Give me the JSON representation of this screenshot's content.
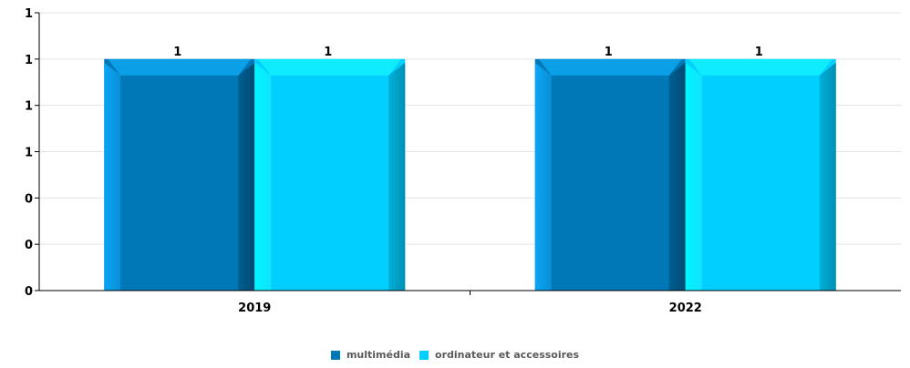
{
  "chart_data": {
    "type": "bar",
    "categories": [
      "2019",
      "2022"
    ],
    "series": [
      {
        "name": "multimédia",
        "values": [
          1,
          1
        ],
        "color": "#0077b6"
      },
      {
        "name": "ordinateur et accessoires",
        "values": [
          1,
          1
        ],
        "color": "#00cfff"
      }
    ],
    "y_tick_labels": [
      "0",
      "0",
      "0",
      "1",
      "1",
      "1",
      "1"
    ],
    "ylim": [
      0,
      1.2
    ],
    "grid": true,
    "legend_position": "bottom-center",
    "title": "",
    "xlabel": "",
    "ylabel": ""
  }
}
